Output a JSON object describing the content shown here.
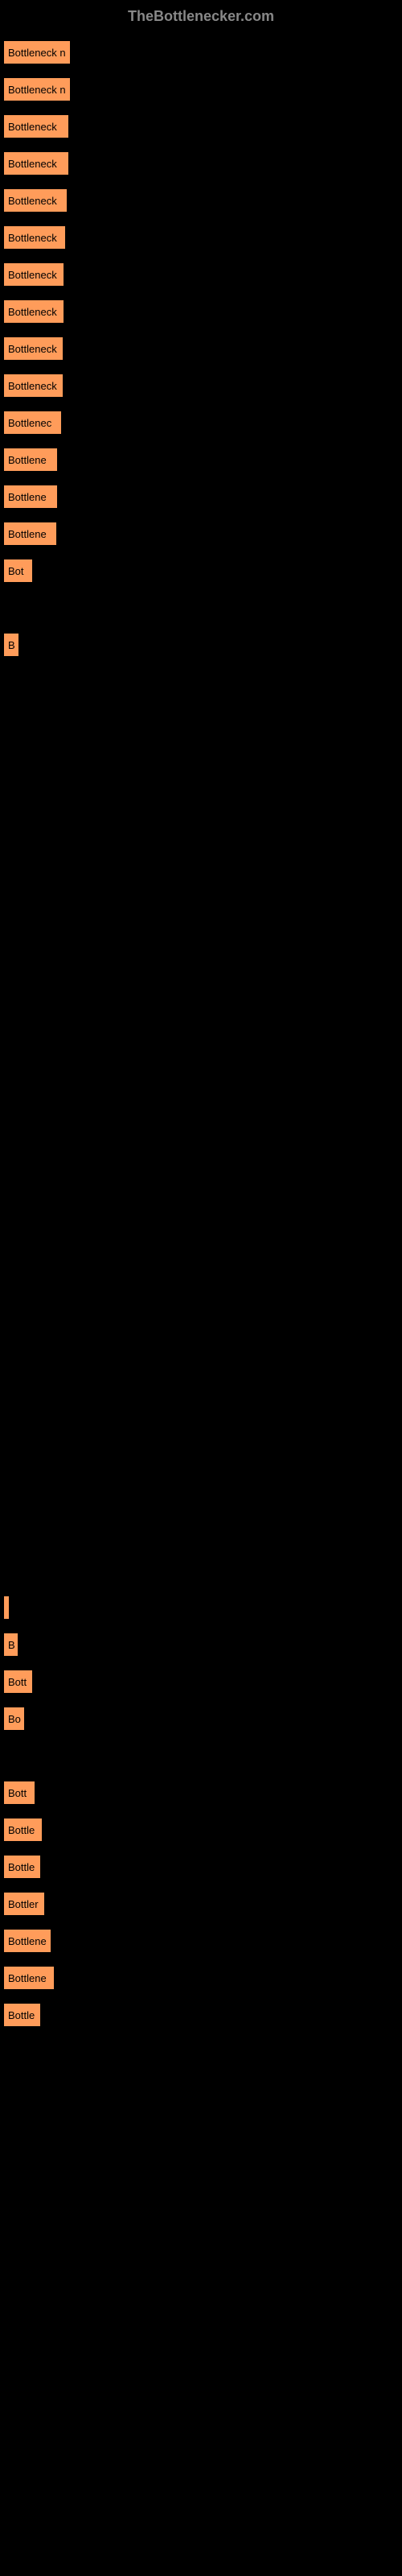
{
  "header": "TheBottlenecker.com",
  "chart": {
    "type": "bar",
    "bar_color": "#ff9c5a",
    "text_color": "#000000",
    "label_color": "#ff9c5a",
    "background_color": "#000000",
    "max_width": 490,
    "bars": [
      {
        "width": 82,
        "text": "Bottleneck n"
      },
      {
        "width": 82,
        "text": "Bottleneck n"
      },
      {
        "width": 80,
        "text": "Bottleneck"
      },
      {
        "width": 80,
        "text": "Bottleneck"
      },
      {
        "width": 78,
        "text": "Bottleneck"
      },
      {
        "width": 76,
        "text": "Bottleneck"
      },
      {
        "width": 74,
        "text": "Bottleneck"
      },
      {
        "width": 74,
        "text": "Bottleneck"
      },
      {
        "width": 73,
        "text": "Bottleneck"
      },
      {
        "width": 73,
        "text": "Bottleneck"
      },
      {
        "width": 71,
        "text": "Bottlenec"
      },
      {
        "width": 66,
        "text": "Bottlene"
      },
      {
        "width": 66,
        "text": "Bottlene"
      },
      {
        "width": 65,
        "text": "Bottlene"
      },
      {
        "width": 35,
        "text": "Bot"
      },
      {
        "width": 0,
        "text": ""
      },
      {
        "width": 18,
        "text": "B"
      },
      {
        "width": 0,
        "text": ""
      },
      {
        "width": 0,
        "text": ""
      },
      {
        "width": 0,
        "text": ""
      },
      {
        "width": 0,
        "text": ""
      },
      {
        "width": 0,
        "text": ""
      },
      {
        "width": 0,
        "text": ""
      },
      {
        "width": 0,
        "text": ""
      },
      {
        "width": 0,
        "text": ""
      },
      {
        "width": 0,
        "text": ""
      },
      {
        "width": 0,
        "text": ""
      },
      {
        "width": 0,
        "text": ""
      },
      {
        "width": 0,
        "text": ""
      },
      {
        "width": 0,
        "text": ""
      },
      {
        "width": 0,
        "text": ""
      },
      {
        "width": 0,
        "text": ""
      },
      {
        "width": 0,
        "text": ""
      },
      {
        "width": 0,
        "text": ""
      },
      {
        "width": 0,
        "text": ""
      },
      {
        "width": 0,
        "text": ""
      },
      {
        "width": 0,
        "text": ""
      },
      {
        "width": 0,
        "text": ""
      },
      {
        "width": 0,
        "text": ""
      },
      {
        "width": 0,
        "text": ""
      },
      {
        "width": 0,
        "text": ""
      },
      {
        "width": 0,
        "text": ""
      },
      {
        "width": 3,
        "text": ""
      },
      {
        "width": 17,
        "text": "B"
      },
      {
        "width": 35,
        "text": "Bott"
      },
      {
        "width": 25,
        "text": "Bo"
      },
      {
        "width": 0,
        "text": ""
      },
      {
        "width": 38,
        "text": "Bott"
      },
      {
        "width": 47,
        "text": "Bottle"
      },
      {
        "width": 45,
        "text": "Bottle"
      },
      {
        "width": 50,
        "text": "Bottler"
      },
      {
        "width": 58,
        "text": "Bottlene"
      },
      {
        "width": 62,
        "text": "Bottlene"
      },
      {
        "width": 45,
        "text": "Bottle"
      }
    ]
  }
}
